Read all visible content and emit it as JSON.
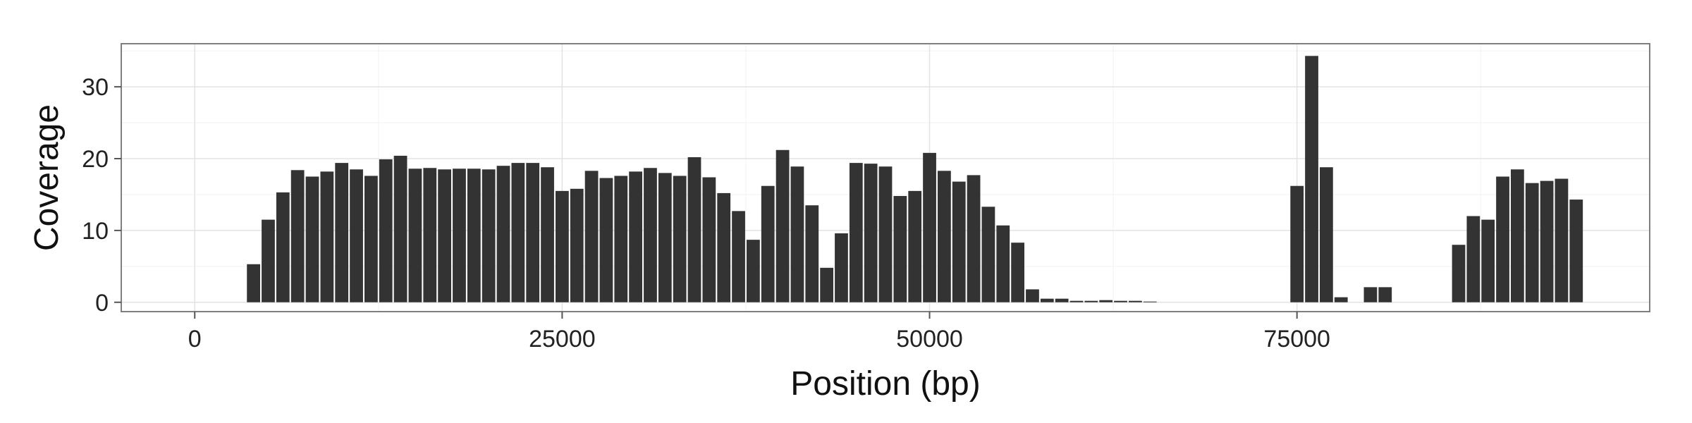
{
  "chart_data": {
    "type": "bar",
    "title": "",
    "xlabel": "Position (bp)",
    "ylabel": "Coverage",
    "xlim": [
      -5000,
      99000
    ],
    "ylim": [
      -1.3,
      36.0
    ],
    "xticks": [
      0,
      25000,
      50000,
      75000
    ],
    "xtick_labels": [
      "0",
      "25000",
      "50000",
      "75000"
    ],
    "yticks": [
      0,
      10,
      20,
      30
    ],
    "ytick_labels": [
      "0",
      "10",
      "20",
      "30"
    ],
    "grid": true,
    "bin_width": 1000,
    "bar_color": "#333333",
    "series": [
      {
        "x": [
          4000,
          5000,
          6000,
          7000,
          8000,
          9000,
          10000,
          11000,
          12000,
          13000,
          14000,
          15000,
          16000,
          17000,
          18000,
          19000,
          20000,
          21000,
          22000,
          23000,
          24000,
          25000,
          26000,
          27000,
          28000,
          29000,
          30000,
          31000,
          32000,
          33000,
          34000,
          35000,
          36000,
          37000,
          38000,
          39000,
          40000,
          41000,
          42000,
          43000,
          44000,
          45000,
          46000,
          47000,
          48000,
          49000,
          50000,
          51000,
          52000,
          53000,
          54000,
          55000,
          56000,
          57000,
          58000,
          59000,
          60000,
          61000,
          62000,
          63000,
          64000,
          65000,
          75000,
          76000,
          77000,
          78000,
          80000,
          81000,
          86000,
          87000,
          88000,
          89000,
          90000,
          91000,
          92000,
          93000,
          94000
        ],
        "values": [
          5.3,
          11.5,
          15.3,
          18.4,
          17.5,
          18.2,
          19.4,
          18.5,
          17.6,
          19.9,
          20.4,
          18.6,
          18.7,
          18.5,
          18.6,
          18.6,
          18.5,
          19.0,
          19.4,
          19.4,
          18.8,
          15.5,
          15.8,
          18.3,
          17.3,
          17.6,
          18.2,
          18.7,
          18.0,
          17.6,
          20.2,
          17.4,
          15.2,
          12.7,
          8.7,
          16.2,
          21.2,
          18.9,
          13.5,
          4.8,
          9.6,
          19.4,
          19.3,
          18.9,
          14.8,
          15.5,
          20.8,
          18.3,
          16.8,
          17.7,
          13.3,
          10.7,
          8.3,
          1.8,
          0.5,
          0.5,
          0.2,
          0.2,
          0.3,
          0.2,
          0.2,
          0.1,
          16.2,
          34.3,
          18.8,
          0.7,
          2.1,
          2.1,
          8.0,
          12.0,
          11.5,
          17.5,
          18.5,
          16.6,
          16.9,
          17.2,
          14.3
        ]
      }
    ]
  }
}
